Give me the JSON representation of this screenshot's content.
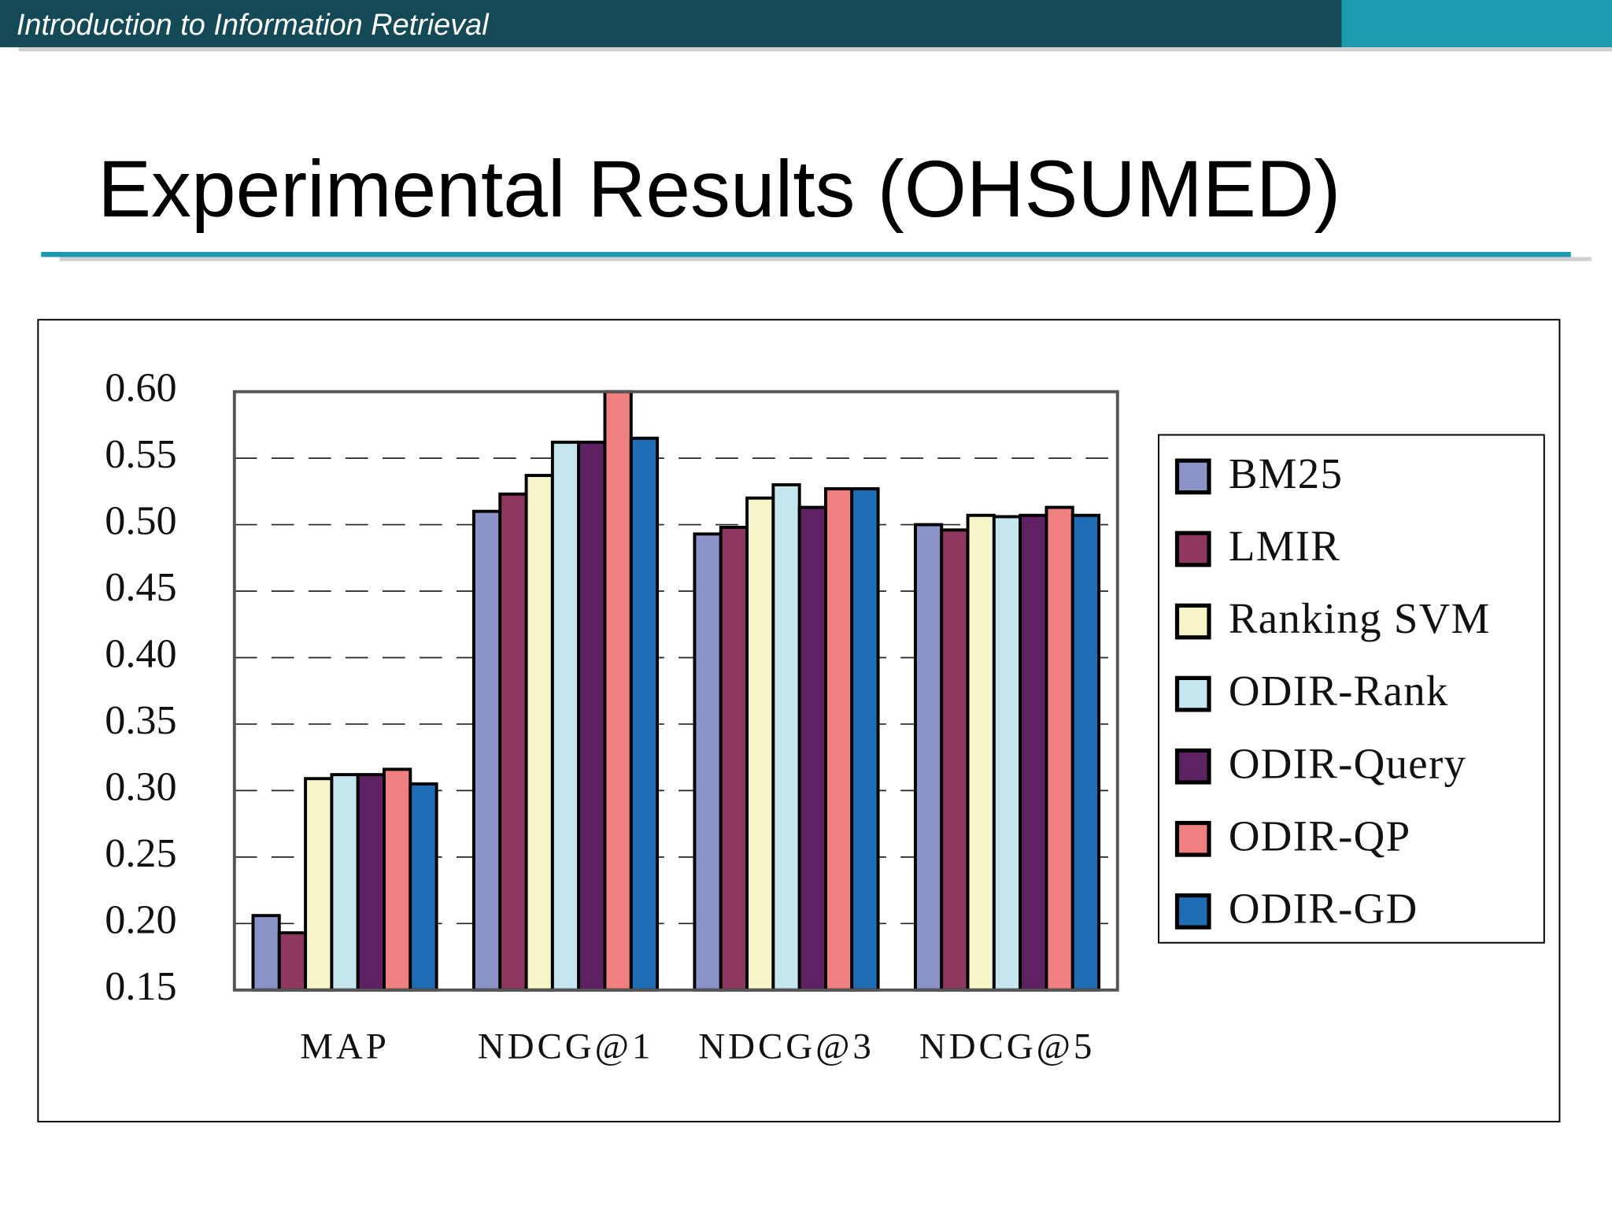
{
  "header": "Introduction to Information Retrieval",
  "slide_title": "Experimental Results (OHSUMED)",
  "chart_data": {
    "type": "bar",
    "categories": [
      "MAP",
      "NDCG@1",
      "NDCG@3",
      "NDCG@5"
    ],
    "series": [
      {
        "name": "BM25",
        "color": "#8b93c8",
        "values": [
          0.206,
          0.51,
          0.493,
          0.5
        ]
      },
      {
        "name": "LMIR",
        "color": "#8e3860",
        "values": [
          0.193,
          0.523,
          0.498,
          0.496
        ]
      },
      {
        "name": "Ranking SVM",
        "color": "#f5f5c8",
        "values": [
          0.309,
          0.537,
          0.52,
          0.507
        ]
      },
      {
        "name": "ODIR-Rank",
        "color": "#c5e6ee",
        "values": [
          0.312,
          0.562,
          0.53,
          0.506
        ]
      },
      {
        "name": "ODIR-Query",
        "color": "#5e2262",
        "values": [
          0.312,
          0.562,
          0.513,
          0.507
        ]
      },
      {
        "name": "ODIR-QP",
        "color": "#f08080",
        "values": [
          0.316,
          0.6,
          0.527,
          0.513
        ]
      },
      {
        "name": "ODIR-GD",
        "color": "#1f6db5",
        "values": [
          0.305,
          0.565,
          0.527,
          0.507
        ]
      }
    ],
    "ylim": [
      0.15,
      0.6
    ],
    "yticks": [
      0.15,
      {
        "value": 0.2,
        "label": "0.20"
      },
      0.25,
      {
        "value": 0.3,
        "label": "0.30"
      },
      0.35,
      {
        "value": 0.4,
        "label": "0.40"
      },
      0.45,
      {
        "value": 0.5,
        "label": "0.50"
      },
      0.55,
      {
        "value": 0.6,
        "label": "0.60"
      }
    ],
    "grid": true,
    "legend": "right"
  }
}
